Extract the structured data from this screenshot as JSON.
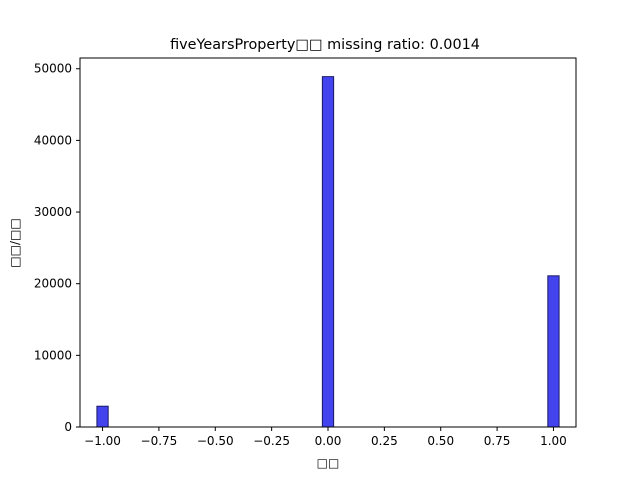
{
  "chart_data": {
    "type": "bar",
    "title": "fiveYearsProperty□□  missing ratio: 0.0014",
    "xlabel": "□□",
    "ylabel": "□□/□□",
    "xlim": [
      -1.1,
      1.1
    ],
    "ylim": [
      0,
      51500
    ],
    "grid": false,
    "legend": "none",
    "bar_width": 0.05,
    "bars": [
      {
        "x": -1.0,
        "value": 2900
      },
      {
        "x": 0.0,
        "value": 48900
      },
      {
        "x": 1.0,
        "value": 21100
      }
    ],
    "x_ticks": [
      {
        "value": -1.0,
        "label": "−1.00"
      },
      {
        "value": -0.75,
        "label": "−0.75"
      },
      {
        "value": -0.5,
        "label": "−0.50"
      },
      {
        "value": -0.25,
        "label": "−0.25"
      },
      {
        "value": 0.0,
        "label": "0.00"
      },
      {
        "value": 0.25,
        "label": "0.25"
      },
      {
        "value": 0.5,
        "label": "0.50"
      },
      {
        "value": 0.75,
        "label": "0.75"
      },
      {
        "value": 1.0,
        "label": "1.00"
      }
    ],
    "y_ticks": [
      {
        "value": 0,
        "label": "0"
      },
      {
        "value": 10000,
        "label": "10000"
      },
      {
        "value": 20000,
        "label": "20000"
      },
      {
        "value": 30000,
        "label": "30000"
      },
      {
        "value": 40000,
        "label": "40000"
      },
      {
        "value": 50000,
        "label": "50000"
      }
    ],
    "colors": {
      "bar_fill": "#4444ee",
      "bar_edge": "#1a1a66",
      "axis": "#000000"
    }
  }
}
